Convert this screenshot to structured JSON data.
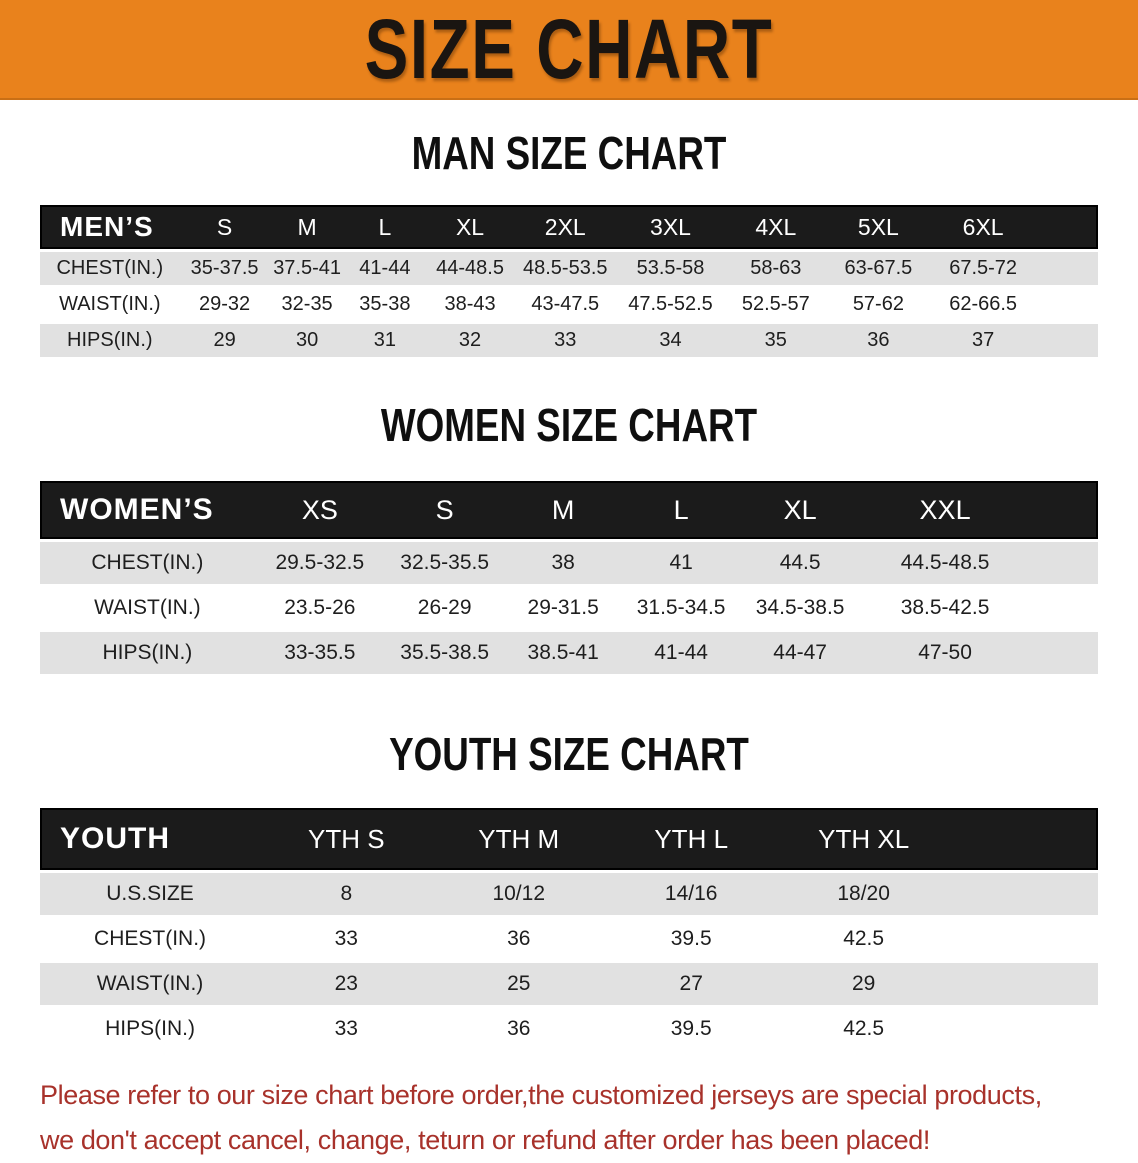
{
  "banner": {
    "title": "SIZE CHART"
  },
  "sections": [
    {
      "title": "MAN SIZE CHART",
      "table": {
        "header": [
          "MEN’S",
          "S",
          "M",
          "L",
          "XL",
          "2XL",
          "3XL",
          "4XL",
          "5XL",
          "6XL"
        ],
        "rows": [
          [
            "CHEST(IN.)",
            "35-37.5",
            "37.5-41",
            "41-44",
            "44-48.5",
            "48.5-53.5",
            "53.5-58",
            "58-63",
            "63-67.5",
            "67.5-72"
          ],
          [
            "WAIST(IN.)",
            "29-32",
            "32-35",
            "35-38",
            "38-43",
            "43-47.5",
            "47.5-52.5",
            "52.5-57",
            "57-62",
            "62-66.5"
          ],
          [
            "HIPS(IN.)",
            "29",
            "30",
            "31",
            "32",
            "33",
            "34",
            "35",
            "36",
            "37"
          ]
        ]
      }
    },
    {
      "title": "WOMEN SIZE CHART",
      "table": {
        "header": [
          "WOMEN’S",
          "XS",
          "S",
          "M",
          "L",
          "XL",
          "XXL"
        ],
        "rows": [
          [
            "CHEST(IN.)",
            "29.5-32.5",
            "32.5-35.5",
            "38",
            "41",
            "44.5",
            "44.5-48.5"
          ],
          [
            "WAIST(IN.)",
            "23.5-26",
            "26-29",
            "29-31.5",
            "31.5-34.5",
            "34.5-38.5",
            "38.5-42.5"
          ],
          [
            "HIPS(IN.)",
            "33-35.5",
            "35.5-38.5",
            "38.5-41",
            "41-44",
            "44-47",
            "47-50"
          ]
        ]
      }
    },
    {
      "title": "YOUTH SIZE CHART",
      "table": {
        "header": [
          "YOUTH",
          "YTH S",
          "YTH M",
          "YTH L",
          "YTH XL"
        ],
        "rows": [
          [
            "U.S.SIZE",
            "8",
            "10/12",
            "14/16",
            "18/20"
          ],
          [
            "CHEST(IN.)",
            "33",
            "36",
            "39.5",
            "42.5"
          ],
          [
            "WAIST(IN.)",
            "23",
            "25",
            "27",
            "29"
          ],
          [
            "HIPS(IN.)",
            "33",
            "36",
            "39.5",
            "42.5"
          ]
        ]
      }
    }
  ],
  "footer": {
    "line1": "Please refer to our size chart before order,the customized jerseys are special products,",
    "line2": "we don't accept cancel, change, teturn or refund after order has been placed!"
  },
  "colors": {
    "banner_bg": "#E9821C",
    "banner_text": "#1A1511",
    "header_bg": "#1B1B1B",
    "header_text": "#FFFFFF",
    "row_alt": "#E1E1E1",
    "footer_text": "#A8322B"
  }
}
